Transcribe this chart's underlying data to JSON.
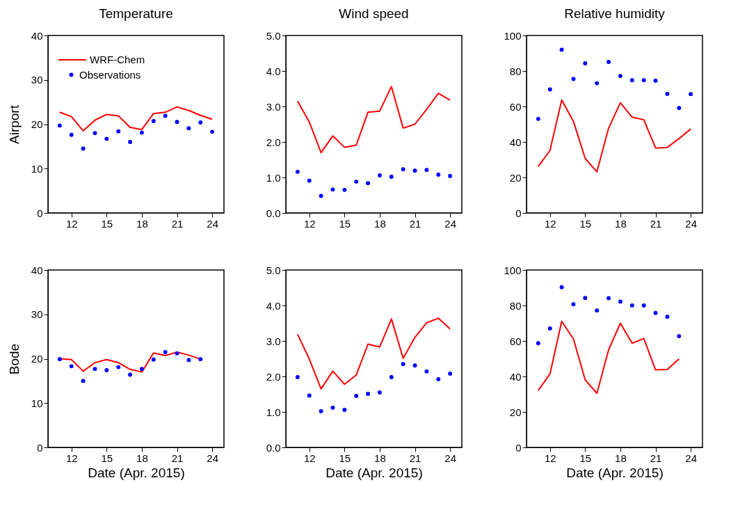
{
  "chart_data": [
    {
      "type": "line",
      "title": "Temperature",
      "ylabel": "Airport",
      "x": [
        11,
        12,
        13,
        14,
        15,
        16,
        17,
        18,
        19,
        20,
        21,
        22,
        23,
        24
      ],
      "xlim": [
        10,
        25
      ],
      "xticks": [
        12,
        15,
        18,
        21,
        24
      ],
      "ylim": [
        0,
        40
      ],
      "yticks": [
        0,
        10,
        20,
        30,
        40
      ],
      "grid": false,
      "legend": "top left",
      "series": [
        {
          "name": "WRF-Chem",
          "color": "#ff0000",
          "values": [
            22.7,
            21.7,
            18.5,
            20.9,
            22.2,
            21.9,
            19.3,
            18.8,
            22.4,
            22.7,
            23.9,
            23.1,
            22.0,
            21.1
          ]
        },
        {
          "name": "Observations",
          "type": "scatter",
          "marker": "circle",
          "color": "#0000ff",
          "values": [
            19.7,
            17.6,
            14.5,
            18.0,
            16.7,
            18.4,
            16.0,
            18.1,
            20.7,
            21.9,
            20.5,
            19.1,
            20.4,
            18.3
          ]
        }
      ]
    },
    {
      "type": "line",
      "title": "Wind speed",
      "x": [
        11,
        12,
        13,
        14,
        15,
        16,
        17,
        18,
        19,
        20,
        21,
        22,
        23,
        24
      ],
      "xlim": [
        10,
        25
      ],
      "xticks": [
        12,
        15,
        18,
        21,
        24
      ],
      "ylim": [
        0,
        5
      ],
      "yticks": [
        {
          "value": 0,
          "label": "0.0"
        },
        {
          "value": 1,
          "label": "1.0"
        },
        {
          "value": 2,
          "label": "2.0"
        },
        {
          "value": 3,
          "label": "3.0"
        },
        {
          "value": 4,
          "label": "4.0"
        },
        {
          "value": 5,
          "label": "5.0"
        }
      ],
      "grid": false,
      "series": [
        {
          "color": "#ff0000",
          "values": [
            3.15,
            2.56,
            1.7,
            2.17,
            1.85,
            1.91,
            2.84,
            2.87,
            3.56,
            2.39,
            2.5,
            2.92,
            3.37,
            3.18
          ]
        },
        {
          "type": "scatter",
          "marker": "circle",
          "color": "#0000ff",
          "values": [
            1.16,
            0.91,
            0.48,
            0.66,
            0.65,
            0.88,
            0.84,
            1.06,
            1.02,
            1.23,
            1.19,
            1.21,
            1.08,
            1.04
          ]
        }
      ]
    },
    {
      "type": "line",
      "title": "Relative humidity",
      "x": [
        11,
        12,
        13,
        14,
        15,
        16,
        17,
        18,
        19,
        20,
        21,
        22,
        23,
        24
      ],
      "xlim": [
        10,
        25
      ],
      "xticks": [
        12,
        15,
        18,
        21,
        24
      ],
      "ylim": [
        0,
        100
      ],
      "yticks": [
        0,
        20,
        40,
        60,
        80,
        100
      ],
      "grid": false,
      "series": [
        {
          "color": "#ff0000",
          "values": [
            26.1,
            35.2,
            63.6,
            51.6,
            30.7,
            23.2,
            47.8,
            62.1,
            54.0,
            52.5,
            36.6,
            36.9,
            41.9,
            47.3
          ]
        },
        {
          "type": "scatter",
          "marker": "circle",
          "color": "#0000ff",
          "values": [
            53.0,
            69.6,
            92.0,
            75.5,
            84.3,
            73.1,
            85.1,
            77.2,
            74.8,
            74.8,
            74.5,
            67.1,
            59.1,
            67.0
          ]
        }
      ]
    },
    {
      "type": "line",
      "ylabel": "Bode",
      "xlabel": "Date (Apr. 2015)",
      "x": [
        11,
        12,
        13,
        14,
        15,
        16,
        17,
        18,
        19,
        20,
        21,
        22,
        23
      ],
      "xlim": [
        10,
        25
      ],
      "xticks": [
        12,
        15,
        18,
        21,
        24
      ],
      "ylim": [
        0,
        40
      ],
      "yticks": [
        0,
        10,
        20,
        30,
        40
      ],
      "grid": false,
      "series": [
        {
          "color": "#ff0000",
          "values": [
            20.0,
            19.8,
            17.2,
            19.1,
            19.8,
            19.1,
            17.6,
            17.0,
            21.3,
            20.7,
            21.5,
            20.8,
            19.9
          ]
        },
        {
          "type": "scatter",
          "marker": "circle",
          "color": "#0000ff",
          "values": [
            19.9,
            18.3,
            15.0,
            17.7,
            17.4,
            18.1,
            16.4,
            17.7,
            19.8,
            21.5,
            21.2,
            19.7,
            19.9
          ]
        }
      ]
    },
    {
      "type": "line",
      "xlabel": "Date (Apr. 2015)",
      "x": [
        11,
        12,
        13,
        14,
        15,
        16,
        17,
        18,
        19,
        20,
        21,
        22,
        23,
        24
      ],
      "xlim": [
        10,
        25
      ],
      "xticks": [
        12,
        15,
        18,
        21,
        24
      ],
      "ylim": [
        0,
        5
      ],
      "yticks": [
        {
          "value": 0,
          "label": "0.0"
        },
        {
          "value": 1,
          "label": "1.0"
        },
        {
          "value": 2,
          "label": "2.0"
        },
        {
          "value": 3,
          "label": "3.0"
        },
        {
          "value": 4,
          "label": "4.0"
        },
        {
          "value": 5,
          "label": "5.0"
        }
      ],
      "grid": false,
      "series": [
        {
          "color": "#ff0000",
          "values": [
            3.19,
            2.49,
            1.65,
            2.15,
            1.78,
            2.04,
            2.91,
            2.83,
            3.62,
            2.51,
            3.1,
            3.51,
            3.64,
            3.34
          ]
        },
        {
          "type": "scatter",
          "marker": "circle",
          "color": "#0000ff",
          "values": [
            1.98,
            1.46,
            1.02,
            1.12,
            1.06,
            1.45,
            1.51,
            1.55,
            1.98,
            2.35,
            2.31,
            2.14,
            1.92,
            2.08
          ]
        }
      ]
    },
    {
      "type": "line",
      "xlabel": "Date (Apr. 2015)",
      "x": [
        11,
        12,
        13,
        14,
        15,
        16,
        17,
        18,
        19,
        20,
        21,
        22,
        23
      ],
      "xlim": [
        10,
        25
      ],
      "xticks": [
        12,
        15,
        18,
        21,
        24
      ],
      "ylim": [
        0,
        100
      ],
      "yticks": [
        0,
        20,
        40,
        60,
        80,
        100
      ],
      "grid": false,
      "series": [
        {
          "color": "#ff0000",
          "values": [
            32.1,
            41.4,
            71.1,
            61.2,
            38.1,
            30.5,
            55.0,
            70.0,
            58.7,
            61.4,
            43.7,
            43.9,
            49.9
          ]
        },
        {
          "type": "scatter",
          "marker": "circle",
          "color": "#0000ff",
          "values": [
            58.7,
            67.1,
            90.3,
            80.7,
            84.2,
            77.2,
            84.1,
            82.2,
            80.0,
            80.0,
            75.8,
            73.6,
            62.7
          ]
        }
      ]
    }
  ]
}
